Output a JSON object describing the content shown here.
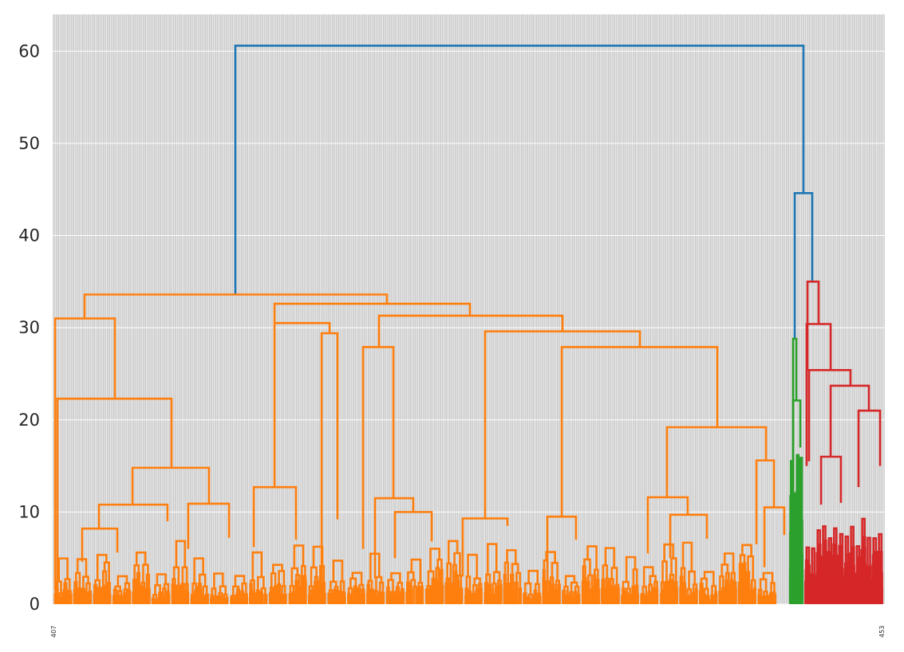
{
  "chart_data": {
    "type": "dendrogram",
    "title": "",
    "xlabel": "",
    "ylabel": "",
    "ylim": [
      0,
      64
    ],
    "yticks": [
      0,
      10,
      20,
      30,
      40,
      50,
      60
    ],
    "grid": true,
    "background": "#cbcbcb",
    "colors": {
      "link": "#1f77b4",
      "cluster1": "#ff7f0e",
      "cluster2": "#2ca02c",
      "cluster3": "#d62728",
      "grid": "#ffffff"
    },
    "leaf_count": 440,
    "visible_leaf_labels": {
      "first": "407",
      "last": "453"
    },
    "merges": [
      {
        "cluster": "root",
        "height": 60.6,
        "children": [
          "orange",
          "blue-right"
        ]
      },
      {
        "cluster": "blue-right",
        "height": 44.6,
        "children": [
          "green",
          "red"
        ]
      },
      {
        "cluster": "orange",
        "height": 33.6
      },
      {
        "cluster": "orange-left",
        "height": 31.0
      },
      {
        "cluster": "orange-left-a",
        "height": 22.3
      },
      {
        "cluster": "orange-right",
        "height": 32.6
      },
      {
        "cluster": "orange-right-a",
        "height": 30.5
      },
      {
        "cluster": "orange-right-b",
        "height": 31.3
      },
      {
        "cluster": "orange-right-b2",
        "height": 29.6
      },
      {
        "cluster": "orange-right-b3",
        "height": 27.9
      },
      {
        "cluster": "green",
        "height": 28.8
      },
      {
        "cluster": "red",
        "height": 35.0
      },
      {
        "cluster": "red-a",
        "height": 30.4
      },
      {
        "cluster": "red-b",
        "height": 25.4
      },
      {
        "cluster": "red-c",
        "height": 23.7
      },
      {
        "cluster": "red-d",
        "height": 21.0
      }
    ]
  }
}
